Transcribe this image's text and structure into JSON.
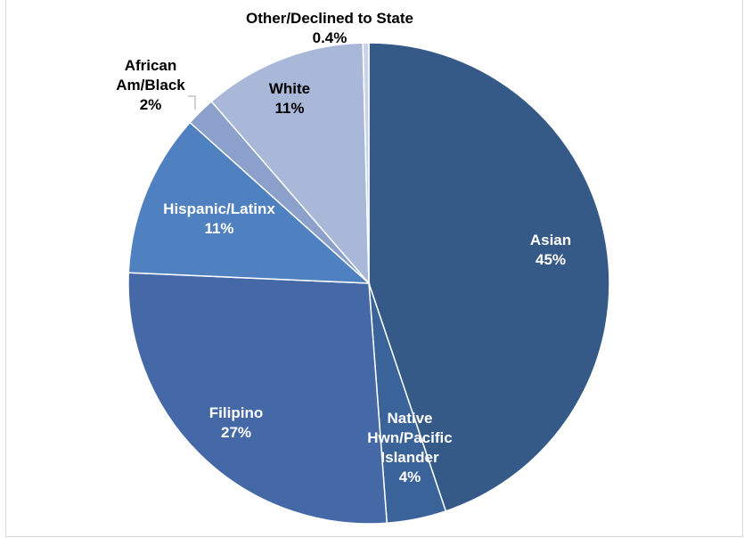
{
  "chart_data": {
    "type": "pie",
    "title": "",
    "start_angle_deg": 0,
    "direction": "clockwise",
    "slices": [
      {
        "label": "Asian",
        "value": 45,
        "value_label": "45%",
        "color": "#355a87",
        "label_color": "#ffffff",
        "label_lines": [
          "Asian",
          "45%"
        ]
      },
      {
        "label": "Native Hwn/Pacific Islander",
        "value": 4,
        "value_label": "4%",
        "color": "#3a639a",
        "label_color": "#ffffff",
        "label_lines": [
          "Native",
          "Hwn/Pacific",
          "Islander",
          "4%"
        ]
      },
      {
        "label": "Filipino",
        "value": 27,
        "value_label": "27%",
        "color": "#4569a6",
        "label_color": "#ffffff",
        "label_lines": [
          "Filipino",
          "27%"
        ]
      },
      {
        "label": "Hispanic/Latinx",
        "value": 11,
        "value_label": "11%",
        "color": "#4f80bf",
        "label_color": "#ffffff",
        "label_lines": [
          "Hispanic/Latinx",
          "11%"
        ]
      },
      {
        "label": "African Am/Black",
        "value": 2,
        "value_label": "2%",
        "color": "#8ba1cb",
        "label_color": "#000000",
        "label_lines": [
          "African",
          "Am/Black",
          "2%"
        ]
      },
      {
        "label": "White",
        "value": 11,
        "value_label": "11%",
        "color": "#a9b8d9",
        "label_color": "#000000",
        "label_lines": [
          "White",
          "11%"
        ]
      },
      {
        "label": "Other/Declined to State",
        "value": 0.4,
        "value_label": "0.4%",
        "color": "#c9d3e8",
        "label_color": "#000000",
        "label_lines": [
          "Other/Declined to State",
          "0.4%"
        ]
      }
    ]
  }
}
